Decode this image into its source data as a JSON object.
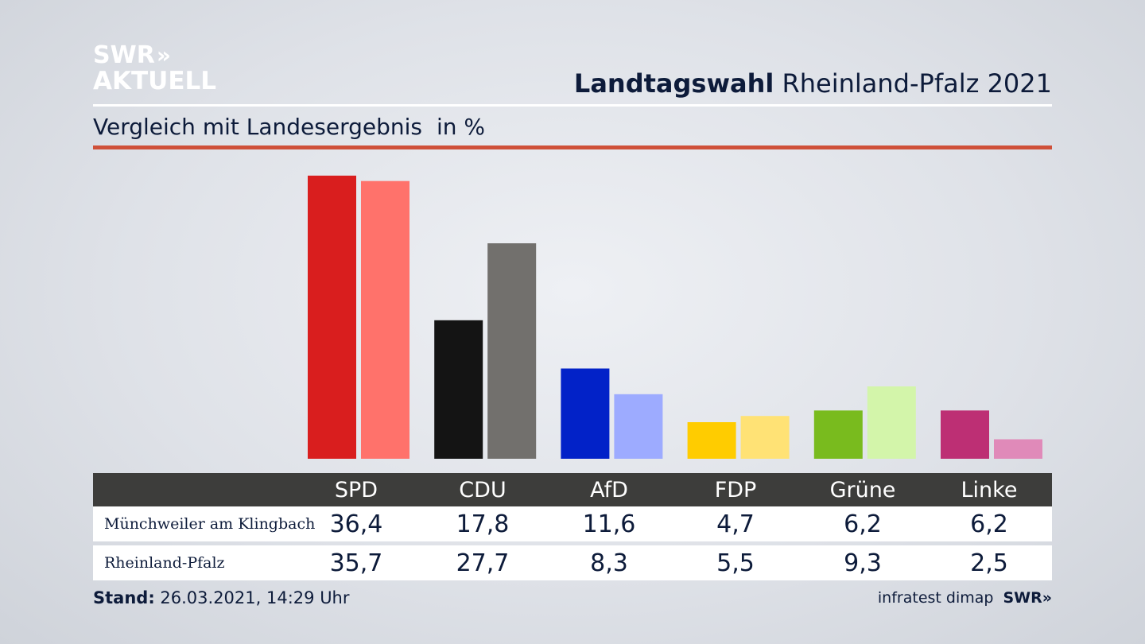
{
  "logo": {
    "line1": "SWR",
    "arrows": "»",
    "line2": "AKTUELL"
  },
  "title": {
    "bold": "Landtagswahl",
    "rest": "Rheinland-Pfalz 2021"
  },
  "subtitle": {
    "text": "Vergleich mit Landesergebnis",
    "unit": "in %"
  },
  "colors": {
    "accent_rule": "#cf5039",
    "table_header_bg": "#3d3d3b"
  },
  "chart_data": {
    "type": "bar",
    "categories": [
      "SPD",
      "CDU",
      "AfD",
      "FDP",
      "Grüne",
      "Linke"
    ],
    "series": [
      {
        "name": "Münchweiler am Klingbach",
        "values": [
          36.4,
          17.8,
          11.6,
          4.7,
          6.2,
          6.2
        ],
        "colors": [
          "#d91e1e",
          "#141414",
          "#0222c8",
          "#ffcc00",
          "#79bb1e",
          "#bd2f74"
        ]
      },
      {
        "name": "Rheinland-Pfalz",
        "values": [
          35.7,
          27.7,
          8.3,
          5.5,
          9.3,
          2.5
        ],
        "colors": [
          "#ff726b",
          "#72706d",
          "#9dabff",
          "#ffe275",
          "#d3f5aa",
          "#e08ab9"
        ]
      }
    ],
    "ylim": [
      0,
      37
    ],
    "grid": false,
    "legend": "table"
  },
  "table": {
    "rows": [
      {
        "label": "Münchweiler am Klingbach",
        "values": [
          "36,4",
          "17,8",
          "11,6",
          "4,7",
          "6,2",
          "6,2"
        ]
      },
      {
        "label": "Rheinland-Pfalz",
        "values": [
          "35,7",
          "27,7",
          "8,3",
          "5,5",
          "9,3",
          "2,5"
        ]
      }
    ]
  },
  "footer": {
    "stand_label": "Stand:",
    "stand_value": "26.03.2021, 14:29 Uhr",
    "source": "infratest dimap",
    "brand": "SWR»"
  }
}
